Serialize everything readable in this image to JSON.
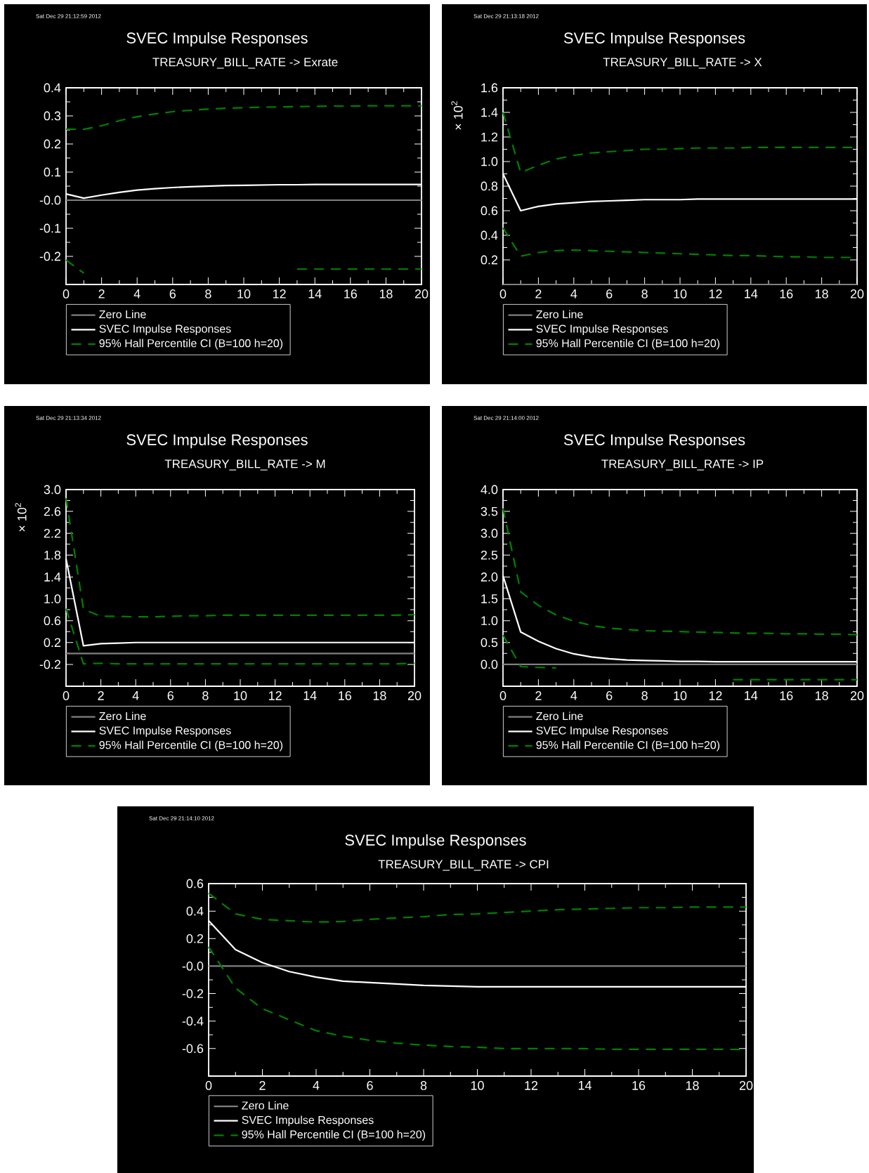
{
  "chart_data": [
    {
      "type": "line",
      "title": "SVEC Impulse Responses",
      "subtitle": "TREASURY_BILL_RATE -> Exrate",
      "annotations": [
        "Sat Dec 29 21:12:59 2012"
      ],
      "legend": "bottom",
      "x": [
        0,
        1,
        2,
        3,
        4,
        5,
        6,
        7,
        8,
        9,
        10,
        11,
        12,
        13,
        14,
        15,
        16,
        17,
        18,
        19,
        20
      ],
      "xlim": [
        0,
        20
      ],
      "xticks": [
        0,
        2,
        4,
        6,
        8,
        10,
        12,
        14,
        16,
        18,
        20
      ],
      "ylim": [
        -0.3,
        0.4
      ],
      "yticks": [
        {
          "value": -0.2,
          "label": "-0.2"
        },
        {
          "value": -0.1,
          "label": "-0.1"
        },
        {
          "value": 0,
          "label": "-0.0"
        },
        {
          "value": 0.1,
          "label": "0.1"
        },
        {
          "value": 0.2,
          "label": "0.2"
        },
        {
          "value": 0.3,
          "label": "0.3"
        },
        {
          "value": 0.4,
          "label": "0.4"
        }
      ],
      "series": [
        {
          "name": "Zero Line",
          "color": "#808080",
          "values": [
            0,
            0,
            0,
            0,
            0,
            0,
            0,
            0,
            0,
            0,
            0,
            0,
            0,
            0,
            0,
            0,
            0,
            0,
            0,
            0,
            0
          ]
        },
        {
          "name": "SVEC Impulse Responses",
          "color": "#ffffff",
          "values": [
            0.022,
            0.007,
            0.018,
            0.028,
            0.036,
            0.041,
            0.045,
            0.048,
            0.05,
            0.052,
            0.053,
            0.054,
            0.055,
            0.055,
            0.056,
            0.056,
            0.056,
            0.056,
            0.056,
            0.056,
            0.056
          ]
        },
        {
          "name": "95% Hall Percentile CI (B=100 h=20)",
          "color": "#008000",
          "line_style": "dashed",
          "values": [
            0.253,
            0.252,
            0.265,
            0.283,
            0.297,
            0.307,
            0.315,
            0.32,
            0.324,
            0.327,
            0.329,
            0.331,
            0.332,
            0.333,
            0.334,
            0.335,
            0.335,
            0.336,
            0.336,
            0.336,
            0.336
          ]
        },
        {
          "color": "#008000",
          "line_style": "dashed",
          "values": [
            -0.213,
            -0.26,
            null,
            null,
            null,
            null,
            null,
            null,
            null,
            null,
            null,
            null,
            null,
            -0.245,
            -0.245,
            -0.245,
            -0.245,
            -0.245,
            -0.245,
            -0.245,
            -0.245
          ]
        }
      ]
    },
    {
      "type": "line",
      "title": "SVEC Impulse Responses",
      "subtitle": "TREASURY_BILL_RATE -> X",
      "ylabel": "× 10$^{2}$",
      "annotations": [
        "Sat Dec 29 21:13:18 2012"
      ],
      "legend": "bottom",
      "x": [
        0,
        1,
        2,
        3,
        4,
        5,
        6,
        7,
        8,
        9,
        10,
        11,
        12,
        13,
        14,
        15,
        16,
        17,
        18,
        19,
        20
      ],
      "xlim": [
        0,
        20
      ],
      "xticks": [
        0,
        2,
        4,
        6,
        8,
        10,
        12,
        14,
        16,
        18,
        20
      ],
      "ylim": [
        0,
        1.6
      ],
      "yticks": [
        {
          "value": 0.2,
          "label": "0.2"
        },
        {
          "value": 0.4,
          "label": "0.4"
        },
        {
          "value": 0.6,
          "label": "0.6"
        },
        {
          "value": 0.8,
          "label": "0.8"
        },
        {
          "value": 1.0,
          "label": "1.0"
        },
        {
          "value": 1.2,
          "label": "1.2"
        },
        {
          "value": 1.4,
          "label": "1.4"
        },
        {
          "value": 1.6,
          "label": "1.6"
        }
      ],
      "series": [
        {
          "name": "Zero Line",
          "color": "#808080",
          "values": [
            0,
            0,
            0,
            0,
            0,
            0,
            0,
            0,
            0,
            0,
            0,
            0,
            0,
            0,
            0,
            0,
            0,
            0,
            0,
            0,
            0
          ]
        },
        {
          "name": "SVEC Impulse Responses",
          "color": "#ffffff",
          "values": [
            0.9,
            0.6,
            0.635,
            0.655,
            0.665,
            0.675,
            0.68,
            0.685,
            0.69,
            0.69,
            0.69,
            0.695,
            0.695,
            0.695,
            0.695,
            0.695,
            0.695,
            0.695,
            0.695,
            0.695,
            0.695
          ]
        },
        {
          "name": "95% Hall Percentile CI (B=100 h=20)",
          "color": "#008000",
          "line_style": "dashed",
          "values": [
            1.4,
            0.91,
            0.97,
            1.02,
            1.05,
            1.07,
            1.08,
            1.09,
            1.1,
            1.1,
            1.105,
            1.11,
            1.11,
            1.11,
            1.115,
            1.115,
            1.115,
            1.115,
            1.115,
            1.115,
            1.115
          ]
        },
        {
          "color": "#008000",
          "line_style": "dashed",
          "values": [
            0.46,
            0.23,
            0.26,
            0.275,
            0.28,
            0.275,
            0.27,
            0.265,
            0.26,
            0.255,
            0.25,
            0.245,
            0.24,
            0.235,
            0.235,
            0.23,
            0.225,
            0.225,
            0.22,
            0.22,
            0.22
          ]
        }
      ]
    },
    {
      "type": "line",
      "title": "SVEC Impulse Responses",
      "subtitle": "TREASURY_BILL_RATE -> M",
      "ylabel": "× 10$^{2}$",
      "annotations": [
        "Sat Dec 29 21:13:34 2012"
      ],
      "legend": "bottom",
      "x": [
        0,
        1,
        2,
        3,
        4,
        5,
        6,
        7,
        8,
        9,
        10,
        11,
        12,
        13,
        14,
        15,
        16,
        17,
        18,
        19,
        20
      ],
      "xlim": [
        0,
        20
      ],
      "xticks": [
        0,
        2,
        4,
        6,
        8,
        10,
        12,
        14,
        16,
        18,
        20
      ],
      "ylim": [
        -0.6,
        3.0
      ],
      "yticks": [
        {
          "value": -0.2,
          "label": "-0.2"
        },
        {
          "value": 0.2,
          "label": "0.2"
        },
        {
          "value": 0.6,
          "label": "0.6"
        },
        {
          "value": 1.0,
          "label": "1.0"
        },
        {
          "value": 1.4,
          "label": "1.4"
        },
        {
          "value": 1.8,
          "label": "1.8"
        },
        {
          "value": 2.2,
          "label": "2.2"
        },
        {
          "value": 2.6,
          "label": "2.6"
        },
        {
          "value": 3.0,
          "label": "3.0"
        }
      ],
      "series": [
        {
          "name": "Zero Line",
          "color": "#808080",
          "values": [
            0,
            0,
            0,
            0,
            0,
            0,
            0,
            0,
            0,
            0,
            0,
            0,
            0,
            0,
            0,
            0,
            0,
            0,
            0,
            0,
            0
          ]
        },
        {
          "name": "SVEC Impulse Responses",
          "color": "#ffffff",
          "values": [
            1.73,
            0.14,
            0.18,
            0.19,
            0.2,
            0.2,
            0.2,
            0.2,
            0.2,
            0.2,
            0.2,
            0.2,
            0.2,
            0.2,
            0.2,
            0.2,
            0.2,
            0.2,
            0.2,
            0.2,
            0.2
          ]
        },
        {
          "name": "95% Hall Percentile CI (B=100 h=20)",
          "color": "#008000",
          "line_style": "dashed",
          "values": [
            2.84,
            0.81,
            0.68,
            0.68,
            0.67,
            0.67,
            0.68,
            0.69,
            0.69,
            0.7,
            0.7,
            0.7,
            0.7,
            0.7,
            0.7,
            0.7,
            0.7,
            0.7,
            0.7,
            0.7,
            0.71
          ]
        },
        {
          "color": "#008000",
          "line_style": "dashed",
          "values": [
            0.82,
            -0.19,
            -0.18,
            -0.19,
            -0.19,
            -0.19,
            -0.19,
            -0.19,
            -0.19,
            -0.19,
            -0.19,
            -0.19,
            -0.19,
            -0.19,
            -0.19,
            -0.19,
            -0.19,
            -0.19,
            -0.19,
            -0.19,
            -0.18
          ]
        }
      ]
    },
    {
      "type": "line",
      "title": "SVEC Impulse Responses",
      "subtitle": "TREASURY_BILL_RATE -> IP",
      "annotations": [
        "Sat Dec 29 21:14:00 2012"
      ],
      "legend": "bottom",
      "x": [
        0,
        1,
        2,
        3,
        4,
        5,
        6,
        7,
        8,
        9,
        10,
        11,
        12,
        13,
        14,
        15,
        16,
        17,
        18,
        19,
        20
      ],
      "xlim": [
        0,
        20
      ],
      "xticks": [
        0,
        2,
        4,
        6,
        8,
        10,
        12,
        14,
        16,
        18,
        20
      ],
      "ylim": [
        -0.5,
        4.0
      ],
      "yticks": [
        {
          "value": 0,
          "label": "0.0"
        },
        {
          "value": 0.5,
          "label": "0.5"
        },
        {
          "value": 1.0,
          "label": "1.0"
        },
        {
          "value": 1.5,
          "label": "1.5"
        },
        {
          "value": 2.0,
          "label": "2.0"
        },
        {
          "value": 2.5,
          "label": "2.5"
        },
        {
          "value": 3.0,
          "label": "3.0"
        },
        {
          "value": 3.5,
          "label": "3.5"
        },
        {
          "value": 4.0,
          "label": "4.0"
        }
      ],
      "series": [
        {
          "name": "Zero Line",
          "color": "#808080",
          "values": [
            0,
            0,
            0,
            0,
            0,
            0,
            0,
            0,
            0,
            0,
            0,
            0,
            0,
            0,
            0,
            0,
            0,
            0,
            0,
            0,
            0
          ]
        },
        {
          "name": "SVEC Impulse Responses",
          "color": "#ffffff",
          "values": [
            2.03,
            0.74,
            0.53,
            0.36,
            0.24,
            0.17,
            0.13,
            0.1,
            0.09,
            0.08,
            0.07,
            0.07,
            0.06,
            0.06,
            0.06,
            0.06,
            0.06,
            0.06,
            0.06,
            0.06,
            0.06
          ]
        },
        {
          "name": "95% Hall Percentile CI (B=100 h=20)",
          "color": "#008000",
          "line_style": "dashed",
          "values": [
            3.57,
            1.66,
            1.35,
            1.13,
            0.99,
            0.89,
            0.83,
            0.8,
            0.77,
            0.76,
            0.75,
            0.74,
            0.73,
            0.72,
            0.71,
            0.71,
            0.7,
            0.7,
            0.69,
            0.69,
            0.68
          ]
        },
        {
          "color": "#008000",
          "line_style": "dashed",
          "values": [
            0.67,
            -0.05,
            -0.07,
            -0.08,
            null,
            null,
            null,
            null,
            null,
            null,
            null,
            null,
            null,
            -0.35,
            -0.35,
            -0.35,
            -0.35,
            -0.35,
            -0.35,
            -0.35,
            -0.35
          ]
        }
      ]
    },
    {
      "type": "line",
      "title": "SVEC Impulse Responses",
      "subtitle": "TREASURY_BILL_RATE -> CPI",
      "annotations": [
        "Sat Dec 29 21:14:10 2012"
      ],
      "legend": "bottom",
      "x": [
        0,
        1,
        2,
        3,
        4,
        5,
        6,
        7,
        8,
        9,
        10,
        11,
        12,
        13,
        14,
        15,
        16,
        17,
        18,
        19,
        20
      ],
      "xlim": [
        0,
        20
      ],
      "xticks": [
        0,
        2,
        4,
        6,
        8,
        10,
        12,
        14,
        16,
        18,
        20
      ],
      "ylim": [
        -0.8,
        0.6
      ],
      "yticks": [
        {
          "value": -0.6,
          "label": "-0.6"
        },
        {
          "value": -0.4,
          "label": "-0.4"
        },
        {
          "value": -0.2,
          "label": "-0.2"
        },
        {
          "value": 0,
          "label": "-0.0"
        },
        {
          "value": 0.2,
          "label": "0.2"
        },
        {
          "value": 0.4,
          "label": "0.4"
        },
        {
          "value": 0.6,
          "label": "0.6"
        }
      ],
      "series": [
        {
          "name": "Zero Line",
          "color": "#808080",
          "values": [
            0,
            0,
            0,
            0,
            0,
            0,
            0,
            0,
            0,
            0,
            0,
            0,
            0,
            0,
            0,
            0,
            0,
            0,
            0,
            0,
            0
          ]
        },
        {
          "name": "SVEC Impulse Responses",
          "color": "#ffffff",
          "values": [
            0.33,
            0.12,
            0.025,
            -0.04,
            -0.08,
            -0.11,
            -0.12,
            -0.13,
            -0.14,
            -0.145,
            -0.15,
            -0.15,
            -0.15,
            -0.15,
            -0.15,
            -0.15,
            -0.15,
            -0.15,
            -0.15,
            -0.15,
            -0.15
          ]
        },
        {
          "name": "95% Hall Percentile CI (B=100 h=20)",
          "color": "#008000",
          "line_style": "dashed",
          "values": [
            0.53,
            0.38,
            0.34,
            0.33,
            0.32,
            0.325,
            0.34,
            0.35,
            0.36,
            0.375,
            0.38,
            0.39,
            0.4,
            0.41,
            0.415,
            0.42,
            0.425,
            0.425,
            0.43,
            0.43,
            0.43
          ]
        },
        {
          "color": "#008000",
          "line_style": "dashed",
          "values": [
            0.14,
            -0.16,
            -0.31,
            -0.39,
            -0.47,
            -0.51,
            -0.54,
            -0.56,
            -0.575,
            -0.585,
            -0.59,
            -0.6,
            -0.6,
            -0.6,
            -0.6,
            -0.605,
            -0.605,
            -0.605,
            -0.605,
            -0.605,
            -0.607
          ]
        }
      ]
    }
  ]
}
